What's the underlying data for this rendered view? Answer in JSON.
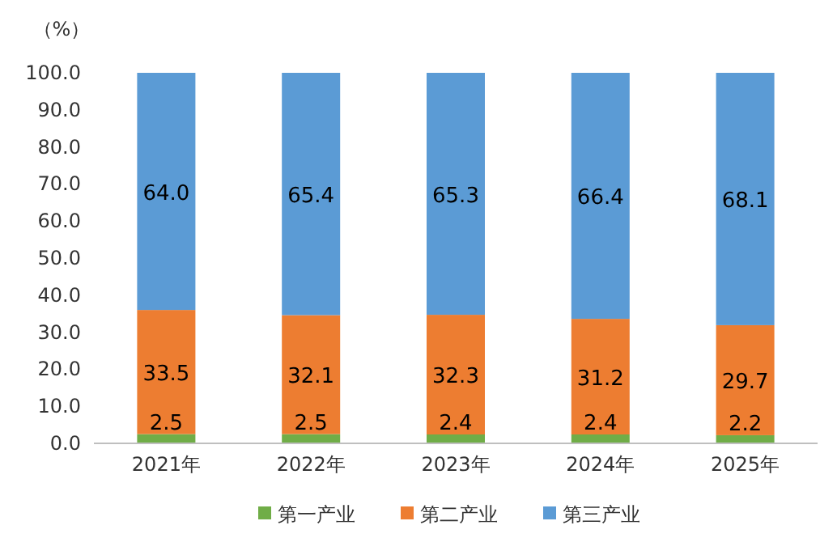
{
  "chart_data": {
    "type": "bar",
    "stacked": true,
    "ylabel": "（%）",
    "categories": [
      "2021年",
      "2022年",
      "2023年",
      "2024年",
      "2025年"
    ],
    "series": [
      {
        "name": "第一产业",
        "color": "#70ad47",
        "values": [
          2.5,
          2.5,
          2.4,
          2.4,
          2.2
        ],
        "value_labels": [
          "2.5",
          "2.5",
          "2.4",
          "2.4",
          "2.2"
        ]
      },
      {
        "name": "第二产业",
        "color": "#ed7d31",
        "values": [
          33.5,
          32.1,
          32.3,
          31.2,
          29.7
        ],
        "value_labels": [
          "33.5",
          "32.1",
          "32.3",
          "31.2",
          "29.7"
        ]
      },
      {
        "name": "第三产业",
        "color": "#5b9bd5",
        "values": [
          64.0,
          65.4,
          65.3,
          66.4,
          68.1
        ],
        "value_labels": [
          "64.0",
          "65.4",
          "65.3",
          "66.4",
          "68.1"
        ]
      }
    ],
    "ylim": [
      0,
      100
    ],
    "yticks": [
      {
        "value": 0,
        "label": "0.0"
      },
      {
        "value": 10,
        "label": "10.0"
      },
      {
        "value": 20,
        "label": "20.0"
      },
      {
        "value": 30,
        "label": "30.0"
      },
      {
        "value": 40,
        "label": "40.0"
      },
      {
        "value": 50,
        "label": "50.0"
      },
      {
        "value": 60,
        "label": "60.0"
      },
      {
        "value": 70,
        "label": "70.0"
      },
      {
        "value": 80,
        "label": "80.0"
      },
      {
        "value": 90,
        "label": "90.0"
      },
      {
        "value": 100,
        "label": "100.0"
      }
    ],
    "grid": false,
    "legend": "bottom"
  }
}
